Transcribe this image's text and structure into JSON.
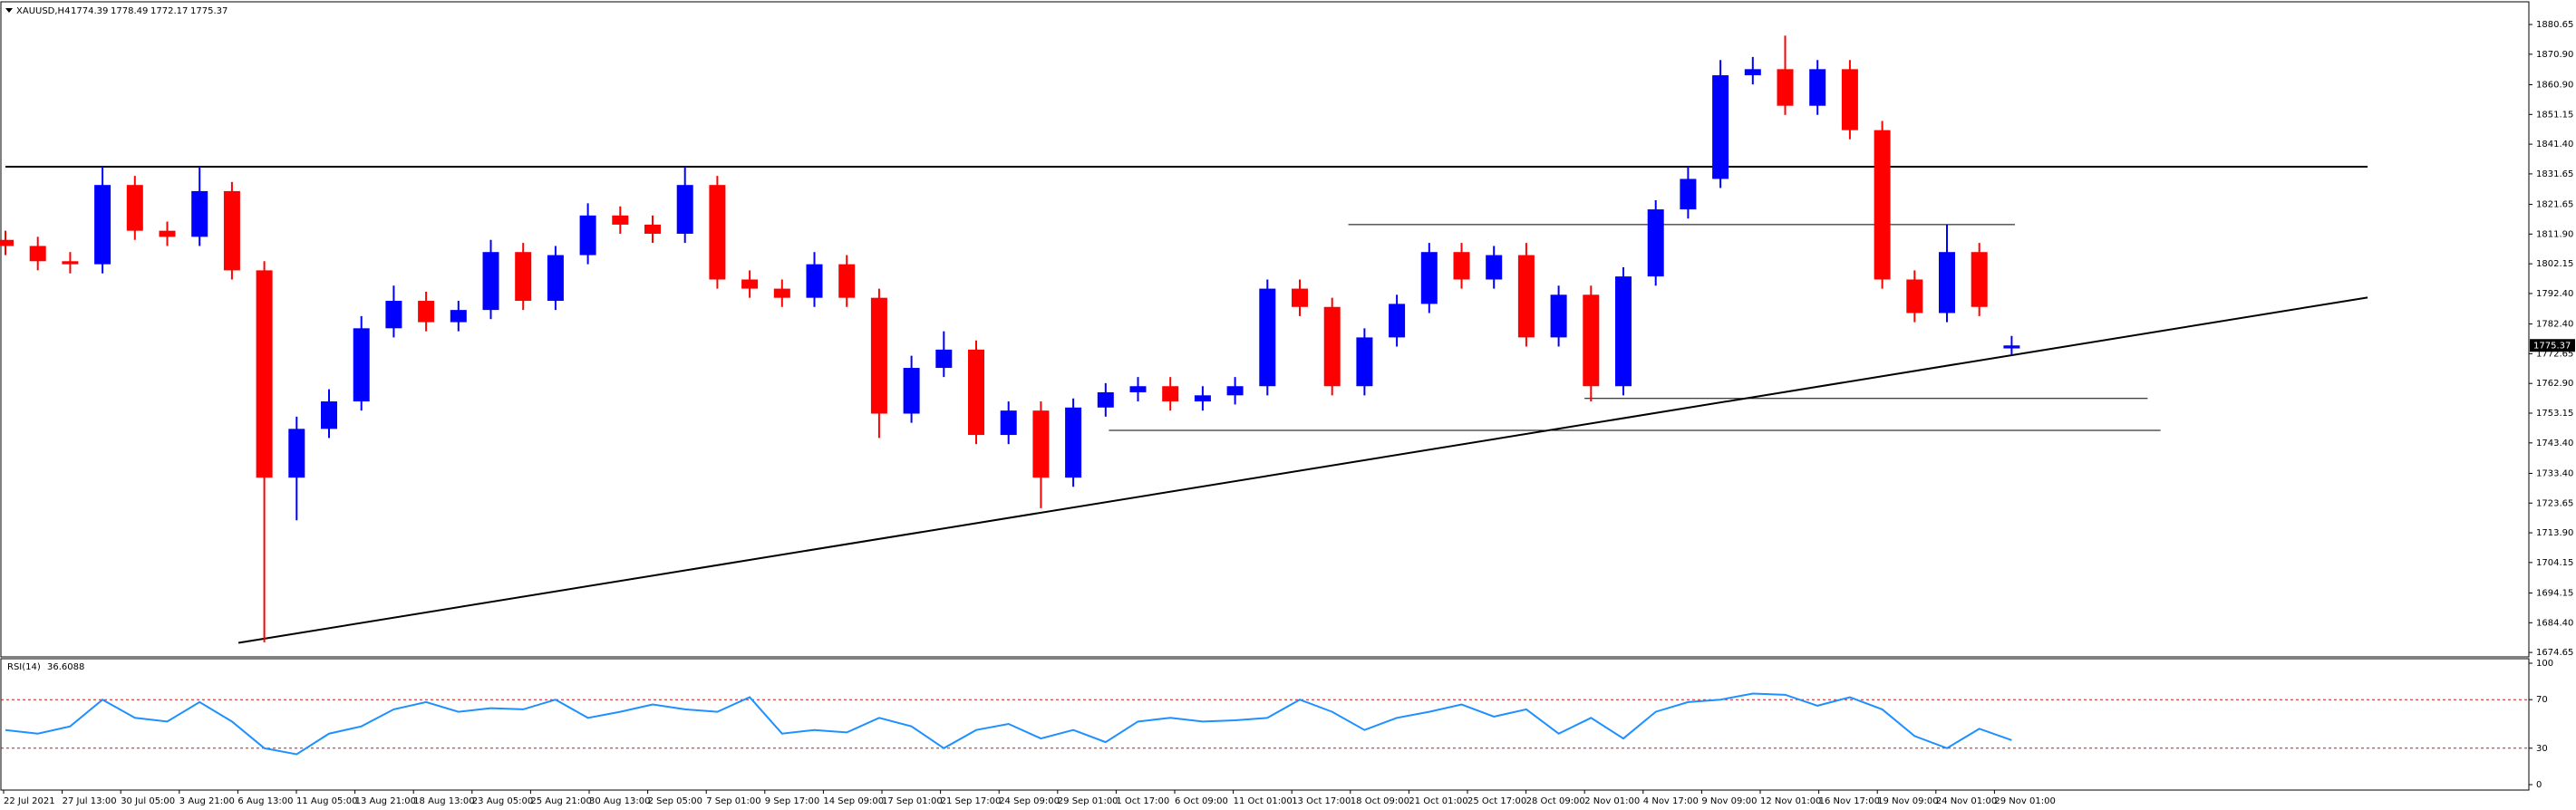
{
  "chart_data": [
    {
      "type": "candlestick",
      "symbol": "XAUUSD,H4",
      "up_color": "#0000ff",
      "down_color": "#ff0000",
      "open": [
        1810,
        1808,
        1803,
        1802,
        1828,
        1813,
        1811,
        1826,
        1800,
        1732,
        1748,
        1757,
        1781,
        1790,
        1783,
        1787,
        1806,
        1790,
        1805,
        1818,
        1815,
        1812,
        1828,
        1797,
        1794,
        1791,
        1802,
        1791,
        1753,
        1768,
        1774,
        1746,
        1754,
        1732,
        1755,
        1760,
        1762,
        1757,
        1759,
        1762,
        1794,
        1788,
        1762,
        1778,
        1789,
        1806,
        1797,
        1805,
        1778,
        1792,
        1762,
        1798,
        1820,
        1830,
        1864,
        1866,
        1854,
        1866,
        1846,
        1797,
        1786,
        1806,
        1774.39
      ],
      "high": [
        1813,
        1811,
        1806,
        1834,
        1831,
        1816,
        1834,
        1829,
        1803,
        1752,
        1761,
        1785,
        1795,
        1793,
        1790,
        1810,
        1809,
        1808,
        1822,
        1821,
        1818,
        1834,
        1831,
        1800,
        1797,
        1806,
        1805,
        1794,
        1772,
        1780,
        1777,
        1757,
        1757,
        1758,
        1763,
        1765,
        1765,
        1762,
        1765,
        1797,
        1797,
        1791,
        1781,
        1792,
        1809,
        1809,
        1808,
        1809,
        1795,
        1795,
        1801,
        1823,
        1834,
        1869,
        1870,
        1877,
        1869,
        1869,
        1849,
        1800,
        1815,
        1809,
        1778.49
      ],
      "low": [
        1805,
        1800,
        1799,
        1799,
        1810,
        1808,
        1808,
        1797,
        1678,
        1718,
        1745,
        1754,
        1778,
        1780,
        1780,
        1784,
        1787,
        1787,
        1802,
        1812,
        1809,
        1809,
        1794,
        1791,
        1788,
        1788,
        1788,
        1745,
        1750,
        1765,
        1743,
        1743,
        1722,
        1729,
        1752,
        1757,
        1754,
        1754,
        1756,
        1759,
        1785,
        1759,
        1759,
        1775,
        1786,
        1794,
        1794,
        1775,
        1775,
        1757,
        1759,
        1795,
        1817,
        1827,
        1861,
        1851,
        1851,
        1843,
        1794,
        1783,
        1783,
        1785,
        1772.17
      ],
      "close": [
        1808,
        1803,
        1802,
        1828,
        1813,
        1811,
        1826,
        1800,
        1732,
        1748,
        1757,
        1781,
        1790,
        1783,
        1787,
        1806,
        1790,
        1805,
        1818,
        1815,
        1812,
        1828,
        1797,
        1794,
        1791,
        1802,
        1791,
        1753,
        1768,
        1774,
        1746,
        1754,
        1732,
        1755,
        1760,
        1762,
        1757,
        1759,
        1762,
        1794,
        1788,
        1762,
        1778,
        1789,
        1806,
        1797,
        1805,
        1778,
        1792,
        1762,
        1798,
        1820,
        1830,
        1864,
        1866,
        1854,
        1866,
        1846,
        1797,
        1786,
        1806,
        1788,
        1775.37
      ],
      "ylim": [
        1673.2,
        1887.5
      ],
      "yticks": [
        1880.65,
        {
          "value": 1870.9,
          "label": "1870.90"
        },
        {
          "value": 1860.9,
          "label": "1860.90"
        },
        1851.15,
        {
          "value": 1841.4,
          "label": "1841.40"
        },
        1831.65,
        1821.65,
        {
          "value": 1811.9,
          "label": "1811.90"
        },
        1802.15,
        {
          "value": 1792.4,
          "label": "1792.40"
        },
        {
          "value": 1782.4,
          "label": "1782.40"
        },
        1772.65,
        {
          "value": 1762.9,
          "label": "1762.90"
        },
        1753.15,
        {
          "value": 1743.4,
          "label": "1743.40"
        },
        {
          "value": 1733.4,
          "label": "1733.40"
        },
        1723.65,
        {
          "value": 1713.9,
          "label": "1713.90"
        },
        1704.15,
        1694.15,
        {
          "value": 1684.4,
          "label": "1684.40"
        },
        1674.65
      ],
      "hlines": [
        {
          "price": 1834,
          "from": 0,
          "to": 73
        },
        {
          "price": 1815,
          "from": 41.5,
          "to": 62.1
        },
        {
          "price": 1758,
          "from": 48.8,
          "to": 66.2
        },
        {
          "price": 1747.5,
          "from": 34.1,
          "to": 66.6
        }
      ],
      "trendline": {
        "from": 7.2,
        "to": 73,
        "start_price": 1677.8,
        "end_price": 1791.1
      },
      "x_labels": [
        "22 Jul 2021",
        "27 Jul 13:00",
        "30 Jul 05:00",
        "3 Aug 21:00",
        "6 Aug 13:00",
        "11 Aug 05:00",
        "13 Aug 21:00",
        "18 Aug 13:00",
        "23 Aug 05:00",
        "25 Aug 21:00",
        "30 Aug 13:00",
        "2 Sep 05:00",
        "7 Sep 01:00",
        "9 Sep 17:00",
        "14 Sep 09:00",
        "17 Sep 01:00",
        "21 Sep 17:00",
        "24 Sep 09:00",
        "29 Sep 01:00",
        "1 Oct 17:00",
        "6 Oct 09:00",
        "11 Oct 01:00",
        "13 Oct 17:00",
        "18 Oct 09:00",
        "21 Oct 01:00",
        "25 Oct 17:00",
        "28 Oct 09:00",
        "2 Nov 01:00",
        "4 Nov 17:00",
        "9 Nov 09:00",
        "12 Nov 01:00",
        "16 Nov 17:00",
        "19 Nov 09:00",
        "24 Nov 01:00",
        "29 Nov 01:00"
      ]
    },
    {
      "type": "line",
      "title": "RSI(14)",
      "color": "#1e90ff",
      "level_color": "#ff0000",
      "values": [
        45,
        42,
        48,
        70,
        55,
        52,
        68,
        52,
        30,
        25,
        42,
        48,
        62,
        68,
        60,
        63,
        62,
        70,
        55,
        60,
        66,
        62,
        60,
        72,
        42,
        45,
        43,
        55,
        48,
        30,
        45,
        50,
        38,
        45,
        35,
        52,
        55,
        52,
        53,
        55,
        70,
        60,
        45,
        55,
        60,
        66,
        56,
        62,
        42,
        55,
        38,
        60,
        68,
        70,
        75,
        74,
        65,
        72,
        62,
        40,
        30,
        46,
        36.6088
      ],
      "ylim": [
        0,
        100
      ],
      "yticks": [
        100,
        70,
        30,
        0
      ],
      "levels": [
        70,
        30
      ]
    }
  ]
}
